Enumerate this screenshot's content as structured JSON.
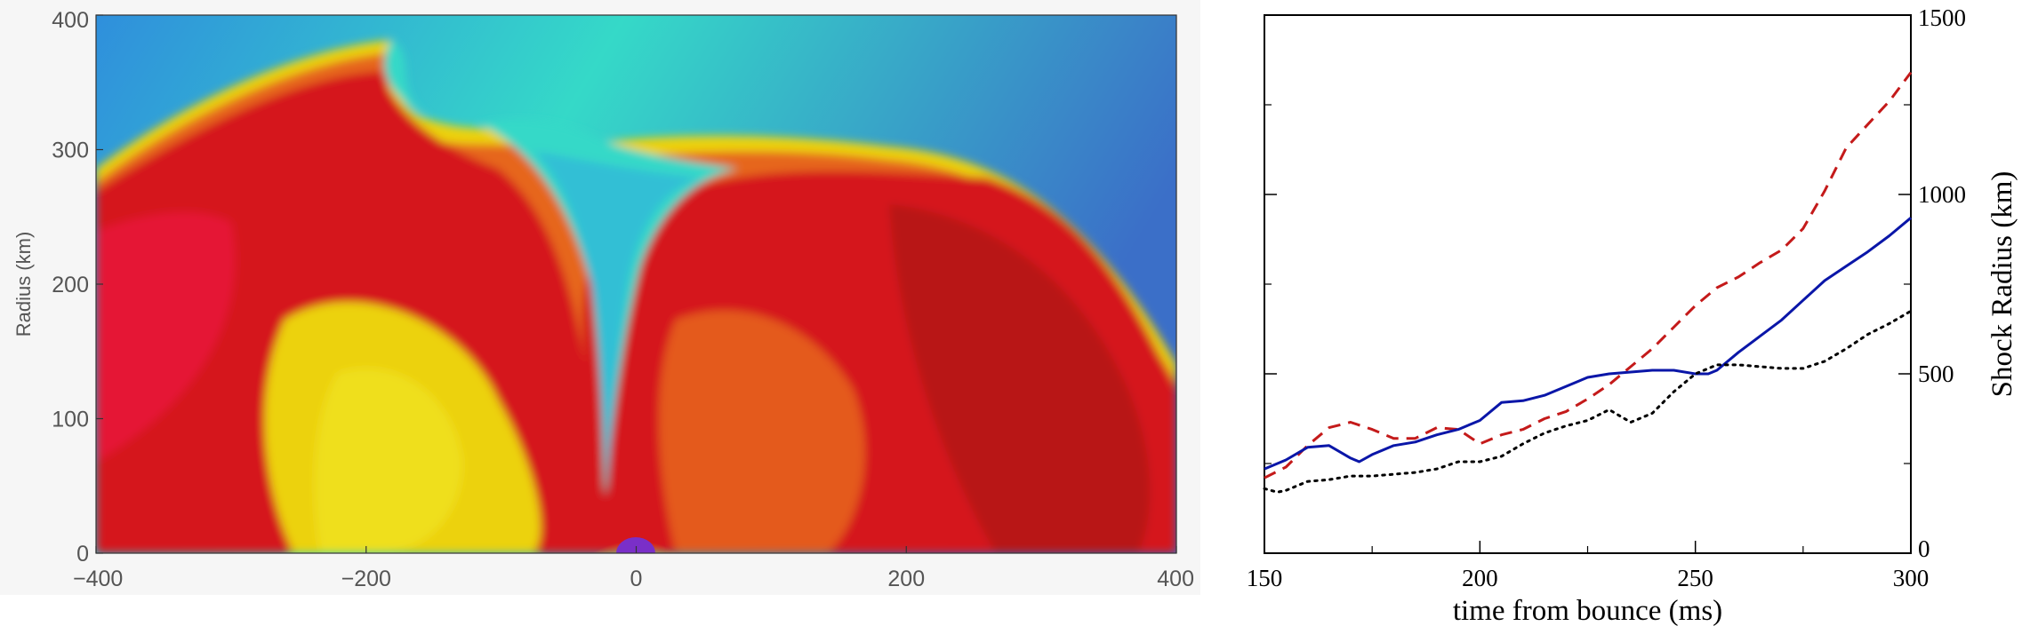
{
  "colors": {
    "ejecta_hot": "#d5141c",
    "ejecta_warm": "#e6661a",
    "ejecta_mid": "#ecd20f",
    "ejecta_cool": "#35d9c8",
    "ejecta_cold": "#2f8fdc",
    "core": "#7a2fc8",
    "series_dashed": "#c41a1a",
    "series_solid": "#0a16a8",
    "series_dotted": "#000000"
  },
  "chart_data": [
    {
      "type": "heatmap",
      "ylabel": "Radius (km)",
      "xlim": [
        -400,
        400
      ],
      "ylim": [
        0,
        400
      ],
      "x_ticks": [
        "−400",
        "−200",
        "0",
        "200",
        "400"
      ],
      "y_ticks": [
        "0",
        "100",
        "200",
        "300",
        "400"
      ]
    },
    {
      "type": "line",
      "xlabel": "time from bounce (ms)",
      "ylabel": "Shock Radius (km)",
      "xlim": [
        150,
        300
      ],
      "ylim": [
        0,
        1500
      ],
      "x_ticks": [
        "150",
        "200",
        "250",
        "300"
      ],
      "y_ticks": [
        "0",
        "500",
        "1000",
        "1500"
      ],
      "y_minor_ticks": [
        250,
        750,
        1250
      ],
      "x_minor_ticks": [
        175,
        225,
        275
      ],
      "grid": false,
      "series": [
        {
          "style": "dashed",
          "color": "#c41a1a",
          "x": [
            150,
            155,
            160,
            165,
            170,
            175,
            180,
            185,
            190,
            195,
            200,
            205,
            210,
            215,
            220,
            225,
            230,
            235,
            240,
            245,
            250,
            255,
            260,
            265,
            270,
            275,
            280,
            285,
            290,
            295,
            300
          ],
          "y": [
            210,
            240,
            300,
            350,
            365,
            345,
            320,
            320,
            350,
            345,
            305,
            330,
            345,
            375,
            395,
            430,
            470,
            520,
            570,
            630,
            690,
            740,
            770,
            810,
            845,
            905,
            1010,
            1130,
            1195,
            1260,
            1340
          ]
        },
        {
          "style": "solid",
          "color": "#0a16a8",
          "x": [
            150,
            155,
            160,
            165,
            170,
            172,
            175,
            180,
            185,
            190,
            195,
            200,
            205,
            210,
            215,
            220,
            225,
            230,
            235,
            240,
            245,
            250,
            253,
            255,
            260,
            265,
            270,
            275,
            280,
            285,
            290,
            295,
            300
          ],
          "y": [
            235,
            260,
            295,
            300,
            265,
            255,
            275,
            300,
            310,
            330,
            345,
            370,
            420,
            425,
            440,
            465,
            490,
            500,
            505,
            510,
            510,
            500,
            500,
            510,
            560,
            605,
            650,
            705,
            760,
            800,
            840,
            885,
            935
          ]
        },
        {
          "style": "dotted",
          "color": "#000000",
          "x": [
            150,
            153,
            155,
            160,
            165,
            170,
            175,
            180,
            185,
            190,
            195,
            200,
            205,
            210,
            215,
            220,
            225,
            230,
            235,
            240,
            245,
            250,
            255,
            260,
            265,
            270,
            275,
            280,
            285,
            290,
            295,
            300
          ],
          "y": [
            180,
            170,
            175,
            200,
            205,
            215,
            215,
            220,
            225,
            235,
            255,
            255,
            270,
            305,
            335,
            355,
            370,
            400,
            365,
            390,
            450,
            500,
            525,
            525,
            520,
            515,
            515,
            535,
            570,
            610,
            640,
            675
          ]
        }
      ]
    }
  ]
}
